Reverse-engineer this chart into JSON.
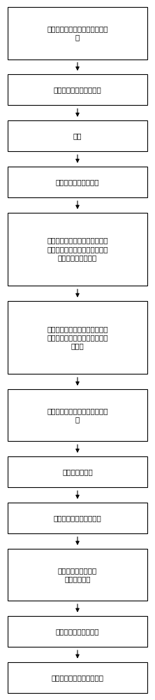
{
  "boxes": [
    {
      "text": "提供衬底硅，在衬底硅上加工图\n样",
      "lines": 2
    },
    {
      "text": "根据图样刻蚀深槽或深孔",
      "lines": 1
    },
    {
      "text": "退火",
      "lines": 1
    },
    {
      "text": "刻蚀刻穿第一悬空硅膜",
      "lines": 1
    },
    {
      "text": "利用半导体加工方式制作电隔离\n结构，使得悬空薄膜与硅晶圆衬\n底连接处完全电隔离",
      "lines": 3
    },
    {
      "text": "淀积密封材料作为密封层，覆盖\n整个晶圆表面，密封之前刻蚀开\n的结构",
      "lines": 3
    },
    {
      "text": "图形化并刻蚀密封层和电隔离结\n构",
      "lines": 2
    },
    {
      "text": "淀积导电材料层",
      "lines": 1
    },
    {
      "text": "图形化并刻蚀导电材料层",
      "lines": 1
    },
    {
      "text": "淀积半导体绝缘层，\n图形化并刻蚀",
      "lines": 2
    },
    {
      "text": "淀积金属电极并图形化",
      "lines": 1
    },
    {
      "text": "图形化并刻蚀形成进气结构",
      "lines": 1
    }
  ],
  "box_color": "#ffffff",
  "border_color": "#000000",
  "text_color": "#000000",
  "arrow_color": "#000000",
  "background_color": "#ffffff",
  "font_size": 7.5,
  "fig_width": 2.22,
  "fig_height": 10.0
}
